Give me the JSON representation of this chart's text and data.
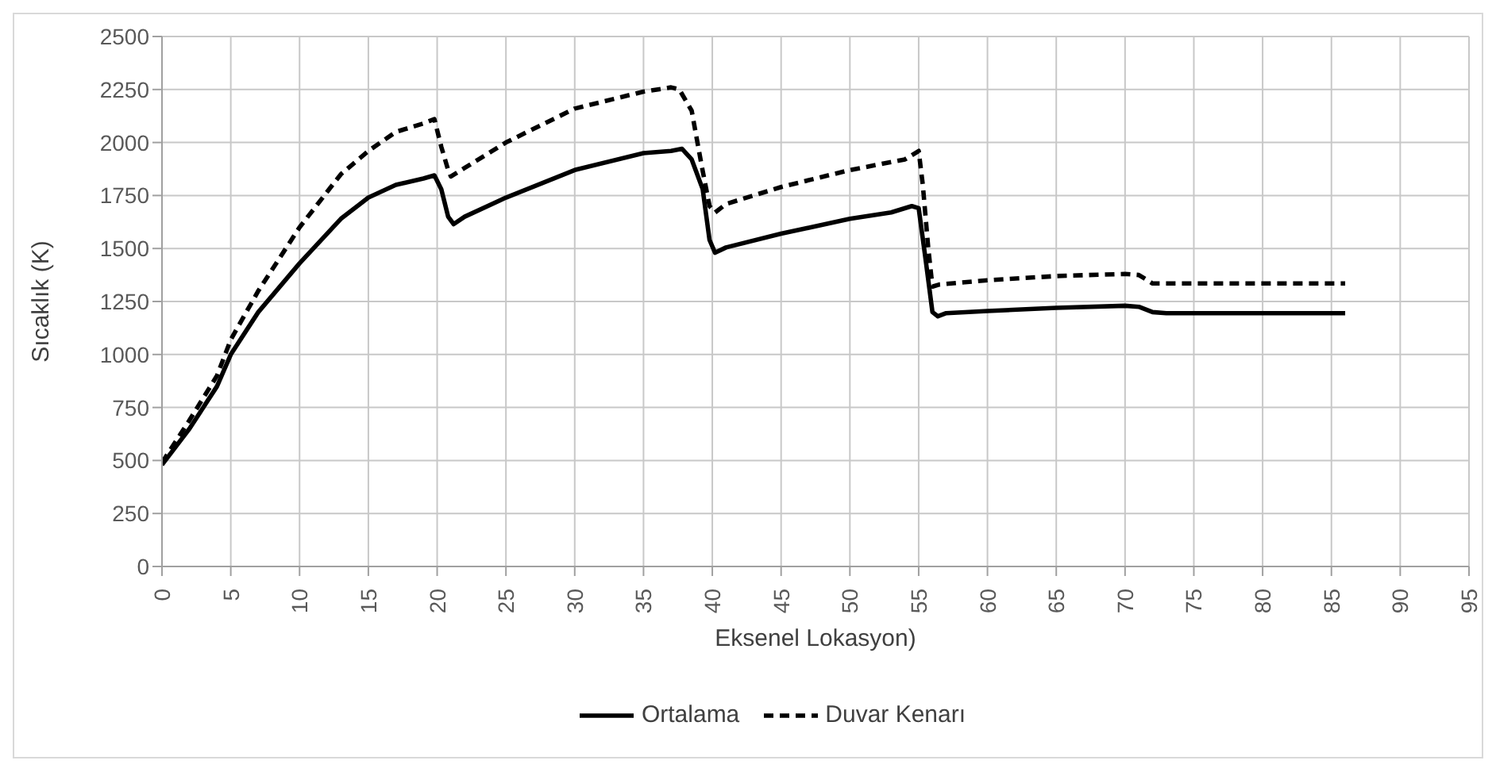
{
  "chart_data": {
    "type": "line",
    "xlabel": "Eksenel Lokasyon)",
    "ylabel": "Sıcaklık (K)",
    "xlim": [
      0,
      95
    ],
    "xticks": [
      0,
      5,
      10,
      15,
      20,
      25,
      30,
      35,
      40,
      45,
      50,
      55,
      60,
      65,
      70,
      75,
      80,
      85,
      90,
      95
    ],
    "ylim": [
      0,
      2500
    ],
    "yticks": [
      0,
      250,
      500,
      750,
      1000,
      1250,
      1500,
      1750,
      2000,
      2250,
      2500
    ],
    "grid": true,
    "legend": "bottom",
    "marker": "none",
    "series": [
      {
        "name": "Ortalama",
        "color": "#000000",
        "line_style": "solid",
        "x": [
          0,
          2,
          4,
          5,
          7,
          10,
          13,
          15,
          17,
          19,
          19.8,
          20.3,
          20.8,
          21.2,
          22,
          25,
          30,
          35,
          37,
          37.8,
          38.5,
          39.3,
          39.8,
          40.2,
          41,
          45,
          50,
          53,
          54.5,
          55,
          55.5,
          56,
          56.4,
          57,
          60,
          65,
          70,
          71,
          72,
          73,
          80,
          86
        ],
        "values": [
          480,
          650,
          850,
          1000,
          1200,
          1430,
          1640,
          1740,
          1800,
          1830,
          1845,
          1780,
          1650,
          1615,
          1650,
          1740,
          1870,
          1950,
          1960,
          1970,
          1920,
          1780,
          1540,
          1480,
          1505,
          1570,
          1640,
          1670,
          1700,
          1690,
          1450,
          1200,
          1180,
          1195,
          1205,
          1220,
          1230,
          1225,
          1200,
          1195,
          1195,
          1195
        ]
      },
      {
        "name": "Duvar Kenarı",
        "color": "#000000",
        "line_style": "dashed",
        "x": [
          0,
          2,
          4,
          5,
          7,
          10,
          13,
          15,
          17,
          19,
          19.8,
          20.3,
          20.8,
          21,
          22,
          25,
          30,
          35,
          37,
          37.6,
          38.5,
          39.2,
          39.8,
          40.2,
          41,
          45,
          50,
          54,
          55,
          55.3,
          55.7,
          56,
          56.5,
          60,
          65,
          70,
          71,
          72,
          75,
          86
        ],
        "values": [
          490,
          690,
          900,
          1070,
          1300,
          1600,
          1850,
          1960,
          2050,
          2090,
          2110,
          1980,
          1870,
          1840,
          1880,
          2000,
          2160,
          2240,
          2260,
          2250,
          2150,
          1900,
          1700,
          1670,
          1710,
          1790,
          1870,
          1920,
          1960,
          1800,
          1500,
          1320,
          1330,
          1350,
          1370,
          1380,
          1375,
          1335,
          1335,
          1335
        ]
      }
    ]
  }
}
